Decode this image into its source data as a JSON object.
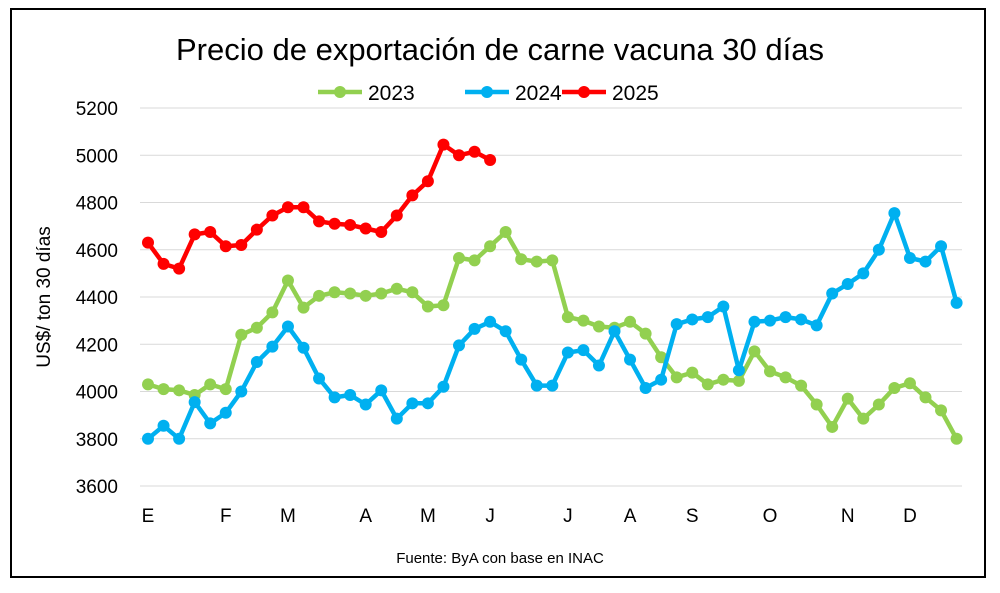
{
  "chart_data": {
    "type": "line",
    "title": "Precio de exportación de carne vacuna 30 días",
    "ylabel": "US$/ ton 30 días",
    "xlabel": "",
    "ylim": [
      3600,
      5200
    ],
    "yticks": [
      3600,
      3800,
      4000,
      4200,
      4400,
      4600,
      4800,
      5000,
      5200
    ],
    "x_tick_labels": [
      {
        "label": "E",
        "week": 1
      },
      {
        "label": "F",
        "week": 6
      },
      {
        "label": "M",
        "week": 10
      },
      {
        "label": "A",
        "week": 15
      },
      {
        "label": "M",
        "week": 19
      },
      {
        "label": "J",
        "week": 23
      },
      {
        "label": "J",
        "week": 28
      },
      {
        "label": "A",
        "week": 32
      },
      {
        "label": "S",
        "week": 36
      },
      {
        "label": "O",
        "week": 41
      },
      {
        "label": "N",
        "week": 46
      },
      {
        "label": "D",
        "week": 50
      }
    ],
    "grid": true,
    "legend_position": "top-center",
    "source": "Fuente: ByA con base en INAC",
    "series": [
      {
        "name": "2023",
        "color": "#92d050",
        "values": [
          4030,
          4010,
          4005,
          3985,
          4030,
          4010,
          4240,
          4270,
          4335,
          4470,
          4355,
          4405,
          4420,
          4415,
          4405,
          4415,
          4435,
          4420,
          4360,
          4365,
          4565,
          4555,
          4615,
          4675,
          4560,
          4550,
          4555,
          4315,
          4300,
          4275,
          4270,
          4295,
          4245,
          4145,
          4060,
          4080,
          4030,
          4050,
          4045,
          4170,
          4085,
          4060,
          4025,
          3945,
          3850,
          3970,
          3885,
          3945,
          4015,
          4035,
          3975,
          3920,
          3800
        ]
      },
      {
        "name": "2024",
        "color": "#00b0f0",
        "values": [
          3800,
          3855,
          3800,
          3955,
          3865,
          3910,
          4000,
          4125,
          4190,
          4275,
          4185,
          4055,
          3975,
          3985,
          3945,
          4005,
          3885,
          3950,
          3950,
          4020,
          4195,
          4265,
          4295,
          4255,
          4135,
          4025,
          4025,
          4165,
          4175,
          4110,
          4255,
          4135,
          4015,
          4050,
          4285,
          4305,
          4315,
          4360,
          4090,
          4295,
          4300,
          4315,
          4305,
          4280,
          4415,
          4455,
          4500,
          4600,
          4755,
          4565,
          4550,
          4615,
          4375
        ]
      },
      {
        "name": "2025",
        "color": "#ff0000",
        "values": [
          4630,
          4540,
          4520,
          4665,
          4675,
          4615,
          4620,
          4685,
          4745,
          4780,
          4780,
          4720,
          4710,
          4705,
          4690,
          4675,
          4745,
          4830,
          4890,
          5045,
          5000,
          5015,
          4980
        ]
      }
    ]
  }
}
